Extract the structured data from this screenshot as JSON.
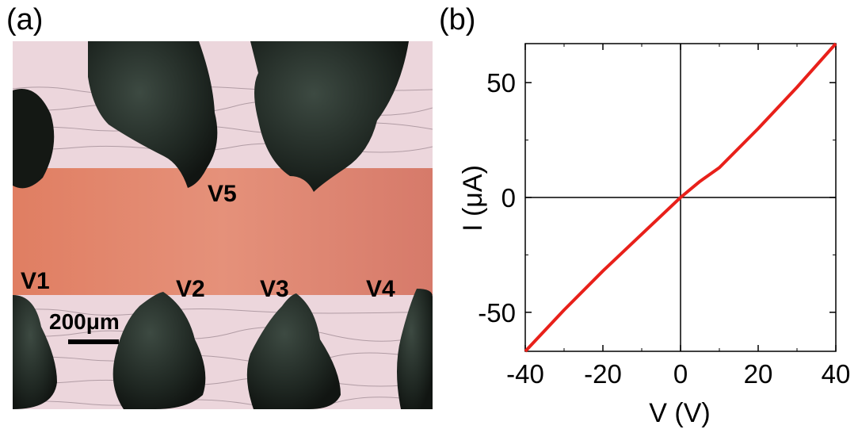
{
  "panels": {
    "a_label": "(a)",
    "b_label": "(b)"
  },
  "photo": {
    "contacts": {
      "v1": "V1",
      "v2": "V2",
      "v3": "V3",
      "v4": "V4",
      "v5": "V5"
    },
    "scale_bar": "200μm"
  },
  "colors": {
    "line": "#e8201a",
    "channel": "#e2806a",
    "substrate": "#ecd6dc",
    "electrode": "#1f2622"
  },
  "chart_data": {
    "type": "line",
    "title": "",
    "xlabel": "V (V)",
    "ylabel": "I (μA)",
    "xlim": [
      -40,
      40
    ],
    "ylim": [
      -67,
      67
    ],
    "xticks": [
      -40,
      -20,
      0,
      20,
      40
    ],
    "yticks": [
      -50,
      0,
      50
    ],
    "grid": false,
    "zero_lines": true,
    "series": [
      {
        "x": [
          -40,
          -30,
          -20,
          -10,
          -5,
          0,
          5,
          10,
          20,
          30,
          40
        ],
        "y": [
          -67,
          -49,
          -32,
          -16,
          -8,
          0,
          7,
          13,
          30,
          48,
          67
        ]
      }
    ]
  }
}
